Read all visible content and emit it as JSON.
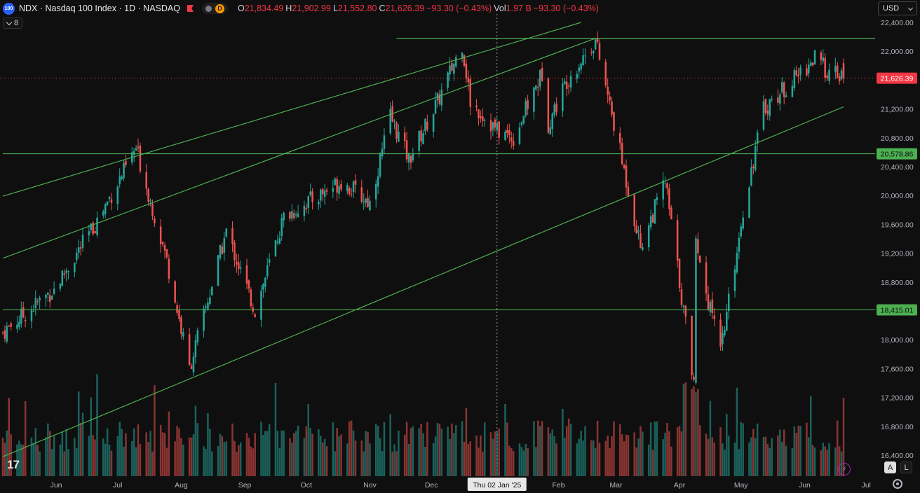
{
  "header": {
    "badge": "100",
    "title": "NDX · Nasdaq 100 Index · 1D · NASDAQ",
    "interval_badge": "D",
    "ohlc": [
      {
        "k": "O",
        "v": "21,834.49"
      },
      {
        "k": "H",
        "v": "21,902.99"
      },
      {
        "k": "L",
        "v": "21,552.80"
      },
      {
        "k": "C",
        "v": "21,626.39"
      },
      {
        "k": "",
        "v": "−93.30 (−0.43%)"
      },
      {
        "k": "Vol",
        "v": "1.97 B"
      },
      {
        "k": "",
        "v": "−93.30 (−0.43%)"
      }
    ],
    "indicator_count": "8"
  },
  "currency": {
    "label": "USD"
  },
  "bottom": {
    "a_label": "A",
    "l_label": "L",
    "bolt": "⚡"
  },
  "colors": {
    "up": "#26a69a",
    "down": "#ef5350",
    "line": "#4caf50",
    "bg": "#0f0f0f"
  },
  "chart_data": {
    "type": "candlestick",
    "symbol": "NDX",
    "interval": "1D",
    "ylim": [
      16400,
      22400
    ],
    "y_ticks": [
      22400,
      22000,
      21600,
      21200,
      20800,
      20400,
      20000,
      19600,
      19200,
      18800,
      18400,
      18000,
      17600,
      17200,
      16800,
      16400
    ],
    "x_ticks": [
      {
        "date": "2024-06-01",
        "label": "Jun"
      },
      {
        "date": "2024-07-01",
        "label": "Jul"
      },
      {
        "date": "2024-08-01",
        "label": "Aug"
      },
      {
        "date": "2024-09-01",
        "label": "Sep"
      },
      {
        "date": "2024-10-01",
        "label": "Oct"
      },
      {
        "date": "2024-11-01",
        "label": "Nov"
      },
      {
        "date": "2024-12-01",
        "label": "Dec"
      },
      {
        "date": "2025-01-02",
        "label": "Thu 02 Jan '25",
        "crosshair": true
      },
      {
        "date": "2025-02-01",
        "label": "Feb"
      },
      {
        "date": "2025-03-01",
        "label": "Mar"
      },
      {
        "date": "2025-04-01",
        "label": "Apr"
      },
      {
        "date": "2025-05-01",
        "label": "May"
      },
      {
        "date": "2025-06-01",
        "label": "Jun"
      },
      {
        "date": "2025-07-01",
        "label": "Jul"
      }
    ],
    "price_labels": [
      {
        "value": 21626.39,
        "text": "21,626.39",
        "color": "#f23645"
      },
      {
        "value": 20578.86,
        "text": "20,578.86",
        "color": "#4caf50"
      },
      {
        "value": 18415.01,
        "text": "18,415.01",
        "color": "#4caf50"
      }
    ],
    "horizontal_lines": [
      {
        "value": 20578.86,
        "from": "2024-05-06",
        "to": "2025-06-20"
      },
      {
        "value": 18415.01,
        "from": "2024-05-06",
        "to": "2025-06-20"
      },
      {
        "value": 22180,
        "from": "2024-11-14",
        "to": "2025-06-20"
      }
    ],
    "trend_lines": [
      {
        "from": [
          "2024-05-06",
          19990
        ],
        "to": [
          "2025-02-12",
          22400
        ]
      },
      {
        "from": [
          "2024-05-06",
          19130
        ],
        "to": [
          "2025-02-19",
          22180
        ]
      },
      {
        "from": [
          "2024-05-06",
          16380
        ],
        "to": [
          "2025-06-20",
          21230
        ]
      }
    ],
    "anchors": [
      {
        "date": "2024-05-06",
        "close": 18100
      },
      {
        "date": "2024-05-31",
        "close": 18700
      },
      {
        "date": "2024-06-20",
        "close": 19600
      },
      {
        "date": "2024-07-10",
        "close": 20650
      },
      {
        "date": "2024-07-25",
        "close": 19100
      },
      {
        "date": "2024-08-05",
        "close": 17600
      },
      {
        "date": "2024-08-23",
        "close": 19500
      },
      {
        "date": "2024-09-06",
        "close": 18400
      },
      {
        "date": "2024-09-20",
        "close": 19700
      },
      {
        "date": "2024-10-18",
        "close": 20200
      },
      {
        "date": "2024-11-01",
        "close": 19900
      },
      {
        "date": "2024-11-11",
        "close": 21100
      },
      {
        "date": "2024-11-20",
        "close": 20500
      },
      {
        "date": "2024-12-04",
        "close": 21300
      },
      {
        "date": "2024-12-16",
        "close": 22100
      },
      {
        "date": "2024-12-20",
        "close": 21300
      },
      {
        "date": "2025-01-02",
        "close": 20900
      },
      {
        "date": "2025-01-10",
        "close": 20800
      },
      {
        "date": "2025-01-24",
        "close": 21700
      },
      {
        "date": "2025-01-27",
        "close": 21000
      },
      {
        "date": "2025-02-05",
        "close": 21600
      },
      {
        "date": "2025-02-19",
        "close": 22150
      },
      {
        "date": "2025-03-03",
        "close": 20600
      },
      {
        "date": "2025-03-13",
        "close": 19300
      },
      {
        "date": "2025-03-25",
        "close": 20200
      },
      {
        "date": "2025-04-04",
        "close": 18200
      },
      {
        "date": "2025-04-08",
        "close": 17400
      },
      {
        "date": "2025-04-09",
        "close": 19300
      },
      {
        "date": "2025-04-21",
        "close": 17800
      },
      {
        "date": "2025-05-02",
        "close": 19800
      },
      {
        "date": "2025-05-12",
        "close": 21200
      },
      {
        "date": "2025-06-06",
        "close": 21900
      },
      {
        "date": "2025-06-13",
        "close": 21700
      },
      {
        "date": "2025-06-20",
        "close": 21626
      }
    ],
    "last_bar": {
      "date": "2025-06-20",
      "open": 21834.49,
      "high": 21902.99,
      "low": 21552.8,
      "close": 21626.39,
      "volume_b": 1.97
    }
  }
}
